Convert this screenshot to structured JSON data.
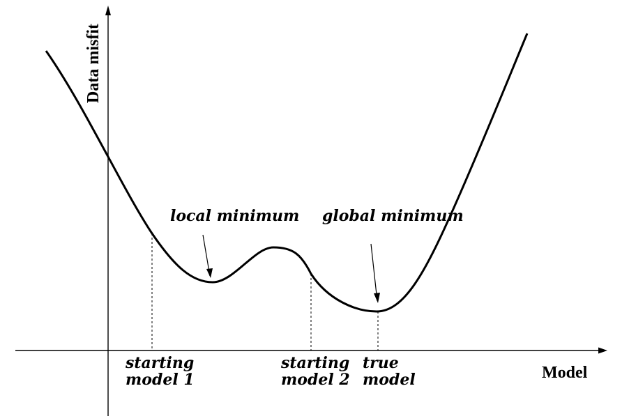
{
  "axes": {
    "y_title": "Data misfit",
    "x_title": "Model"
  },
  "annotations": {
    "local_minimum": "local minimum",
    "global_minimum": "global minimum"
  },
  "markers": [
    {
      "id": "start1",
      "line1": "starting",
      "line2": "model 1"
    },
    {
      "id": "start2",
      "line1": "starting",
      "line2": "model 2"
    },
    {
      "id": "true",
      "line1": "true",
      "line2": "model"
    }
  ],
  "colors": {
    "ink": "#000000"
  }
}
